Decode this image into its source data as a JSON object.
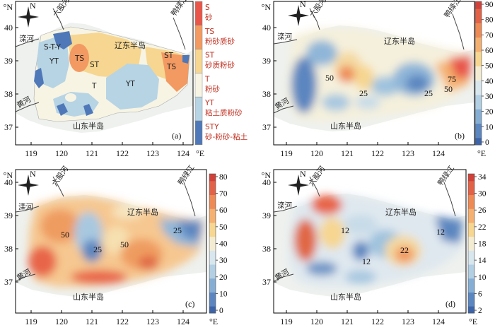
{
  "axes": {
    "lat_unit": "°N",
    "lon_unit": "°E",
    "lat_ticks": [
      "40",
      "39",
      "38",
      "37"
    ],
    "lon_ticks": [
      "119",
      "120",
      "121",
      "122",
      "123",
      "124"
    ]
  },
  "places": {
    "luanhe": "滦河",
    "liuguhe": "六股河",
    "yalujiang": "鸭绿江",
    "liaodong": "辽东半岛",
    "shandong": "山东半岛",
    "huanghe": "黄河"
  },
  "north_letter": "N",
  "panels": [
    {
      "id": "a",
      "label": "(a)",
      "legend": [
        {
          "code": "S",
          "name": "砂",
          "color": "#e8554a"
        },
        {
          "code": "TS",
          "name": "粉砂质砂",
          "color": "#f29a62"
        },
        {
          "code": "ST",
          "name": "砂质粉砂",
          "color": "#f6d690"
        },
        {
          "code": "T",
          "name": "粉砂",
          "color": "#f7f4e4"
        },
        {
          "code": "YT",
          "name": "粘土质粉砂",
          "color": "#b7d4e4"
        },
        {
          "code": "STY",
          "name": "砂-粉砂-粘土",
          "color": "#4f78b8"
        }
      ],
      "map_labels": [
        "S-T-Y",
        "YT",
        "TS",
        "ST",
        "T",
        "YT",
        "ST",
        "TS"
      ]
    },
    {
      "id": "b",
      "label": "(b)",
      "colorbar": [
        "0",
        "10",
        "20",
        "30",
        "40",
        "50",
        "60",
        "70",
        "80",
        "90"
      ],
      "contour_labels": [
        "50",
        "25",
        "25",
        "50",
        "75"
      ]
    },
    {
      "id": "c",
      "label": "(c)",
      "colorbar": [
        "0",
        "10",
        "20",
        "30",
        "40",
        "50",
        "60",
        "70",
        "80"
      ],
      "contour_labels": [
        "50",
        "25",
        "50",
        "25"
      ]
    },
    {
      "id": "d",
      "label": "(d)",
      "colorbar": [
        "2",
        "6",
        "10",
        "14",
        "18",
        "22",
        "26",
        "30",
        "34"
      ],
      "contour_labels": [
        "12",
        "12",
        "12",
        "22"
      ]
    }
  ]
}
